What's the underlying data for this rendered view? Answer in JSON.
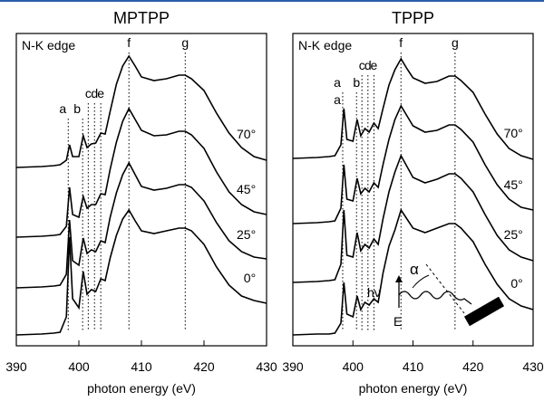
{
  "chart_data": [
    {
      "type": "line",
      "title": "MPTPP",
      "x_label": "photon energy (eV)",
      "annotation": "N-K edge",
      "xlim": [
        390,
        430
      ],
      "xticks": [
        390,
        400,
        410,
        420,
        430
      ],
      "ylim": [
        0,
        345
      ],
      "peaks": [
        {
          "label": "a",
          "x": 398.3
        },
        {
          "label": "b",
          "x": 400.6
        },
        {
          "label": "c",
          "x": 401.5
        },
        {
          "label": "d",
          "x": 402.5
        },
        {
          "label": "e",
          "x": 403.5
        },
        {
          "label": "f",
          "x": 408
        },
        {
          "label": "g",
          "x": 417
        }
      ],
      "x": [
        390,
        394,
        396,
        397,
        398,
        398.5,
        399,
        400,
        400.7,
        401.3,
        402,
        402.7,
        403.5,
        404.2,
        405,
        406,
        407,
        408,
        409,
        410,
        412,
        414,
        416,
        417,
        418,
        420,
        422,
        424,
        426,
        428,
        430
      ],
      "series": [
        {
          "name": "70°",
          "color": "#000000",
          "values": [
            197,
            198,
            199,
            200,
            205,
            222,
            209,
            209,
            232,
            219,
            223,
            224,
            235,
            234,
            259,
            289,
            309,
            320,
            309,
            297,
            293,
            295,
            299,
            299,
            295,
            282,
            257,
            235,
            219,
            209,
            205
          ]
        },
        {
          "name": "45°",
          "color": "#000000",
          "values": [
            120,
            121,
            122,
            123,
            132,
            175,
            145,
            142,
            165,
            152,
            156,
            156,
            168,
            167,
            195,
            225,
            248,
            262,
            250,
            238,
            232,
            233,
            237,
            237,
            233,
            218,
            192,
            170,
            156,
            148,
            145
          ]
        },
        {
          "name": "25°",
          "color": "#000000",
          "values": [
            64,
            65,
            66,
            67,
            79,
            139,
            94,
            89,
            119,
            102,
            106,
            104,
            116,
            114,
            142,
            169,
            189,
            202,
            189,
            176,
            172,
            174,
            178,
            178,
            175,
            160,
            136,
            116,
            104,
            98,
            96
          ]
        },
        {
          "name": "0°",
          "color": "#000000",
          "values": [
            12,
            13,
            14,
            15,
            32,
            120,
            52,
            42,
            82,
            57,
            62,
            60,
            74,
            72,
            97,
            122,
            140,
            150,
            138,
            127,
            124,
            127,
            130,
            130,
            127,
            112,
            87,
            67,
            55,
            50,
            47
          ]
        }
      ]
    },
    {
      "type": "line",
      "title": "TPPP",
      "x_label": "photon energy (eV)",
      "annotation": "N-K edge",
      "xlim": [
        390,
        430
      ],
      "xticks": [
        390,
        400,
        410,
        420,
        430
      ],
      "ylim": [
        0,
        345
      ],
      "peaks": [
        {
          "label": "a",
          "x": 398.3
        },
        {
          "label": "a",
          "x": 398.3
        },
        {
          "label": "b",
          "x": 400.6
        },
        {
          "label": "c",
          "x": 401.5
        },
        {
          "label": "d",
          "x": 402.5
        },
        {
          "label": "e",
          "x": 403.5
        },
        {
          "label": "f",
          "x": 408
        },
        {
          "label": "g",
          "x": 417
        }
      ],
      "inset": {
        "photon": "hν",
        "angle": "α",
        "field": "E"
      },
      "x": [
        390,
        394,
        396,
        397,
        398,
        398.5,
        399,
        400,
        400.7,
        401.3,
        402,
        402.7,
        403.5,
        404.2,
        405,
        406,
        407,
        408,
        409,
        410,
        412,
        414,
        416,
        417,
        418,
        420,
        422,
        424,
        426,
        428,
        430
      ],
      "series": [
        {
          "name": "70°",
          "color": "#000000",
          "values": [
            207,
            208,
            209,
            210,
            222,
            262,
            228,
            226,
            250,
            232,
            240,
            236,
            246,
            240,
            262,
            288,
            305,
            317,
            306,
            296,
            290,
            292,
            298,
            298,
            293,
            280,
            256,
            234,
            218,
            210,
            206
          ]
        },
        {
          "name": "45°",
          "color": "#000000",
          "values": [
            135,
            136,
            137,
            138,
            152,
            200,
            162,
            160,
            185,
            168,
            174,
            170,
            180,
            175,
            200,
            228,
            250,
            265,
            254,
            243,
            236,
            238,
            244,
            244,
            239,
            225,
            200,
            178,
            162,
            153,
            150
          ]
        },
        {
          "name": "25°",
          "color": "#000000",
          "values": [
            70,
            71,
            72,
            73,
            90,
            150,
            100,
            98,
            125,
            105,
            112,
            108,
            118,
            112,
            140,
            170,
            192,
            210,
            198,
            186,
            180,
            184,
            190,
            190,
            185,
            170,
            145,
            122,
            106,
            98,
            94
          ]
        },
        {
          "name": "0°",
          "color": "#000000",
          "values": [
            12,
            13,
            13,
            14,
            25,
            70,
            35,
            32,
            55,
            40,
            48,
            45,
            52,
            48,
            80,
            110,
            128,
            150,
            140,
            130,
            125,
            130,
            135,
            135,
            130,
            115,
            90,
            68,
            52,
            44,
            40
          ]
        }
      ]
    }
  ]
}
